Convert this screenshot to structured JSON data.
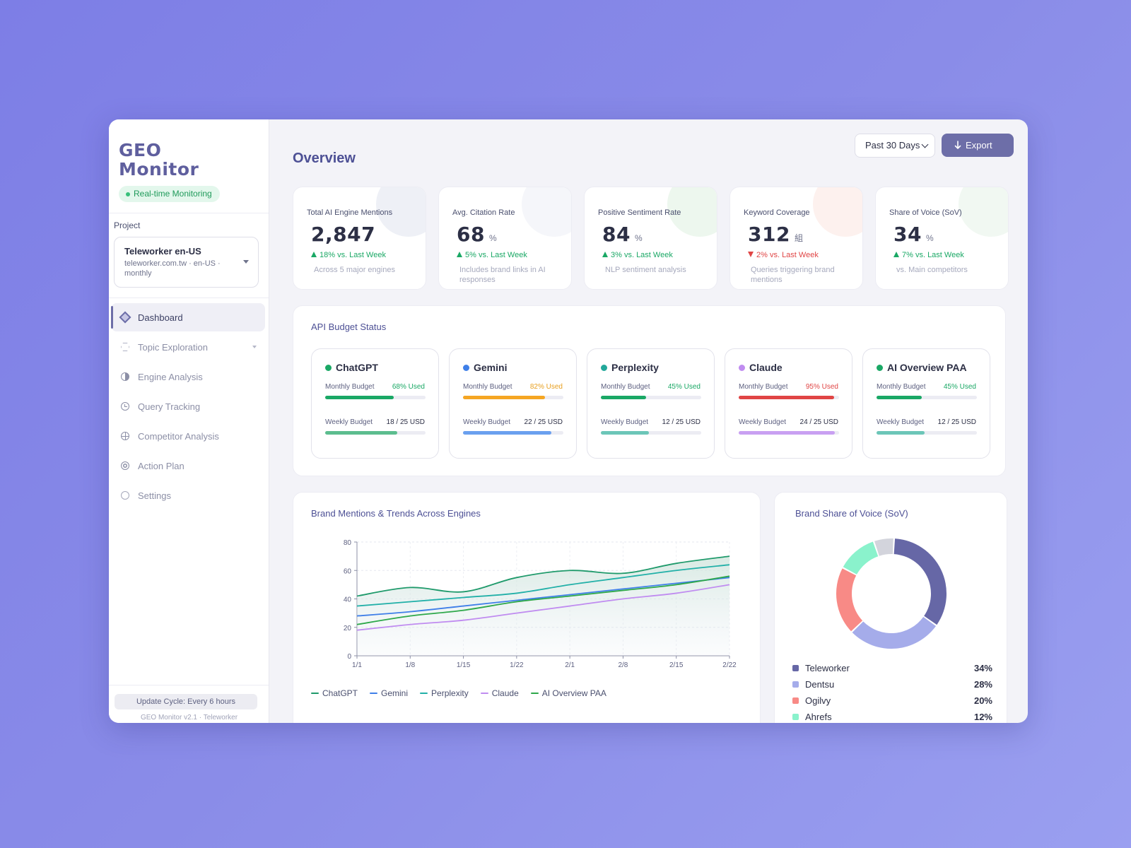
{
  "app": {
    "logo_line1": "GEO",
    "logo_line2": "Monitor",
    "status_badge": "Real-time Monitoring"
  },
  "project": {
    "label": "Project",
    "name": "Teleworker en-US",
    "meta": "teleworker.com.tw · en-US · monthly"
  },
  "nav": [
    {
      "label": "Dashboard",
      "icon": "diamond-icon",
      "active": true
    },
    {
      "label": "Topic Exploration",
      "icon": "hexagon-icon",
      "active": false,
      "has_submenu": true
    },
    {
      "label": "Engine Analysis",
      "icon": "half-circle-icon",
      "active": false
    },
    {
      "label": "Query Tracking",
      "icon": "clock-icon",
      "active": false
    },
    {
      "label": "Competitor Analysis",
      "icon": "globe-icon",
      "active": false
    },
    {
      "label": "Action Plan",
      "icon": "target-icon",
      "active": false
    },
    {
      "label": "Settings",
      "icon": "circle-icon",
      "active": false
    }
  ],
  "footer": {
    "update_cycle": "Update Cycle: Every 6 hours",
    "version": "GEO Monitor v2.1 · Teleworker"
  },
  "header": {
    "title": "Overview",
    "range": "Past 30 Days",
    "export_label": "Export"
  },
  "kpis": [
    {
      "label": "Total AI Engine Mentions",
      "value": "2,847",
      "unit": "",
      "delta": "18% vs. Last Week",
      "direction": "up",
      "note": "Across 5 major engines",
      "accent": "#eef0f6"
    },
    {
      "label": "Avg. Citation Rate",
      "value": "68",
      "unit": "%",
      "delta": "5% vs. Last Week",
      "direction": "up",
      "note": "Includes brand links in AI responses",
      "accent": "#f5f6fa"
    },
    {
      "label": "Positive Sentiment Rate",
      "value": "84",
      "unit": "%",
      "delta": "3% vs. Last Week",
      "direction": "up",
      "note": "NLP sentiment analysis",
      "accent": "#edf7ee"
    },
    {
      "label": "Keyword Coverage",
      "value": "312",
      "unit": "組",
      "delta": "2% vs. Last Week",
      "direction": "down",
      "note": "Queries triggering brand mentions",
      "accent": "#fdf1ee"
    },
    {
      "label": "Share of Voice (SoV)",
      "value": "34",
      "unit": "%",
      "delta": "7% vs. Last Week",
      "direction": "up",
      "note": "vs. Main competitors",
      "accent": "#f1f8f2"
    }
  ],
  "budget": {
    "title": "API Budget Status",
    "monthly_label": "Monthly Budget",
    "weekly_label": "Weekly Budget",
    "engines": [
      {
        "name": "ChatGPT",
        "dot": "#1aa865",
        "monthly_used": "68% Used",
        "monthly_pct": 68,
        "monthly_color": "#1aa865",
        "used_color": "#1aa865",
        "weekly": "18 / 25 USD",
        "weekly_pct": 72,
        "weekly_color": "#5cbd8e"
      },
      {
        "name": "Gemini",
        "dot": "#3f7fe8",
        "monthly_used": "82% Used",
        "monthly_pct": 82,
        "monthly_color": "#f5a623",
        "used_color": "#e8a020",
        "weekly": "22 / 25 USD",
        "weekly_pct": 88,
        "weekly_color": "#6aa0ef"
      },
      {
        "name": "Perplexity",
        "dot": "#22a89a",
        "monthly_used": "45% Used",
        "monthly_pct": 45,
        "monthly_color": "#1aa865",
        "used_color": "#1aa865",
        "weekly": "12 / 25 USD",
        "weekly_pct": 48,
        "weekly_color": "#6cc6b8"
      },
      {
        "name": "Claude",
        "dot": "#c08cf0",
        "monthly_used": "95% Used",
        "monthly_pct": 95,
        "monthly_color": "#e04545",
        "used_color": "#e04545",
        "weekly": "24 / 25 USD",
        "weekly_pct": 96,
        "weekly_color": "#c9a0f2"
      },
      {
        "name": "AI Overview PAA",
        "dot": "#1aa865",
        "monthly_used": "45% Used",
        "monthly_pct": 45,
        "monthly_color": "#1aa865",
        "used_color": "#1aa865",
        "weekly": "12 / 25 USD",
        "weekly_pct": 48,
        "weekly_color": "#6cc6b8"
      }
    ]
  },
  "chart_data": [
    {
      "type": "line",
      "title": "Brand Mentions & Trends Across Engines",
      "categories": [
        "1/1",
        "1/8",
        "1/15",
        "1/22",
        "2/1",
        "2/8",
        "2/15",
        "2/22"
      ],
      "ylim": [
        0,
        80
      ],
      "yticks": [
        0,
        20,
        40,
        60,
        80
      ],
      "grid": true,
      "legend": "bottom",
      "series": [
        {
          "name": "ChatGPT",
          "color": "#1f9a6b",
          "values": [
            42,
            48,
            45,
            55,
            60,
            58,
            65,
            70
          ],
          "fill": true
        },
        {
          "name": "Gemini",
          "color": "#3f7fe8",
          "values": [
            28,
            31,
            35,
            39,
            43,
            47,
            51,
            55
          ]
        },
        {
          "name": "Perplexity",
          "color": "#22b0a8",
          "values": [
            35,
            38,
            41,
            44,
            50,
            55,
            60,
            64
          ]
        },
        {
          "name": "Claude",
          "color": "#c08cf0",
          "values": [
            18,
            22,
            25,
            30,
            35,
            40,
            44,
            50
          ]
        },
        {
          "name": "AI Overview PAA",
          "color": "#2ea84a",
          "values": [
            22,
            28,
            32,
            38,
            42,
            46,
            50,
            56
          ]
        }
      ]
    },
    {
      "type": "pie",
      "title": "Brand Share of Voice (SoV)",
      "slices": [
        {
          "name": "Teleworker",
          "value": 34,
          "label": "34%",
          "color": "#6667a6"
        },
        {
          "name": "Dentsu",
          "value": 28,
          "label": "28%",
          "color": "#a5acea"
        },
        {
          "name": "Ogilvy",
          "value": 20,
          "label": "20%",
          "color": "#f88a86"
        },
        {
          "name": "Ahrefs",
          "value": 12,
          "label": "12%",
          "color": "#8af2cc"
        },
        {
          "name": "",
          "value": 6,
          "label": "",
          "color": "#d3d4dc"
        }
      ]
    }
  ]
}
